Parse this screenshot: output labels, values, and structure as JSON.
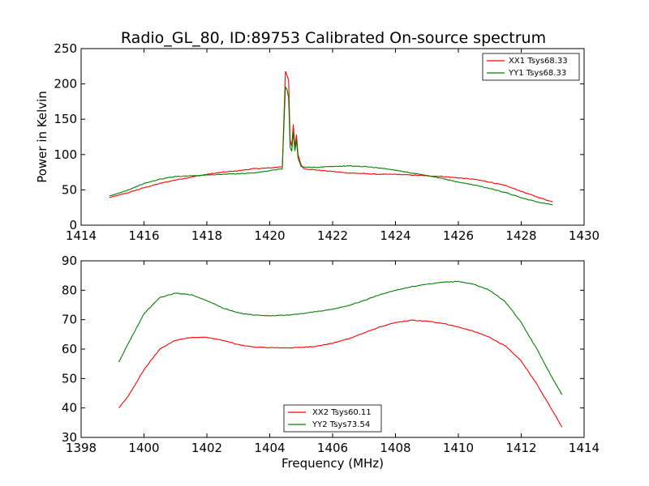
{
  "figure": {
    "title": "Radio_GL_80, ID:89753 Calibrated On-source spectrum",
    "colors": {
      "red": "#ff0000",
      "green": "#008000"
    }
  },
  "chart_data": [
    {
      "type": "line",
      "title": "Radio_GL_80, ID:89753 Calibrated On-source spectrum",
      "xlabel": "",
      "ylabel": "Power in Kelvin",
      "xlim": [
        1414,
        1430
      ],
      "ylim": [
        0,
        250
      ],
      "xticks": [
        "1414",
        "1416",
        "1418",
        "1420",
        "1422",
        "1424",
        "1426",
        "1428",
        "1430"
      ],
      "yticks": [
        "0",
        "50",
        "100",
        "150",
        "200",
        "250"
      ],
      "grid": false,
      "legend": "top-right",
      "series": [
        {
          "name": "XX1 Tsys68.33",
          "color": "#ff0000",
          "points": [
            [
              1414.9,
              39
            ],
            [
              1415.5,
              46
            ],
            [
              1416.0,
              53
            ],
            [
              1416.5,
              59
            ],
            [
              1417.0,
              64
            ],
            [
              1417.5,
              68
            ],
            [
              1418.0,
              72
            ],
            [
              1418.5,
              75
            ],
            [
              1419.0,
              77
            ],
            [
              1419.5,
              80
            ],
            [
              1420.0,
              81
            ],
            [
              1420.4,
              83
            ],
            [
              1420.45,
              150
            ],
            [
              1420.5,
              218
            ],
            [
              1420.55,
              212
            ],
            [
              1420.6,
              205
            ],
            [
              1420.65,
              120
            ],
            [
              1420.7,
              112
            ],
            [
              1420.75,
              142
            ],
            [
              1420.8,
              110
            ],
            [
              1420.85,
              128
            ],
            [
              1420.9,
              100
            ],
            [
              1421.0,
              85
            ],
            [
              1421.1,
              80
            ],
            [
              1421.5,
              78
            ],
            [
              1422.0,
              76
            ],
            [
              1422.5,
              74
            ],
            [
              1423.0,
              73
            ],
            [
              1423.5,
              72
            ],
            [
              1424.0,
              72
            ],
            [
              1424.5,
              71
            ],
            [
              1425.0,
              70
            ],
            [
              1425.5,
              69
            ],
            [
              1426.0,
              67
            ],
            [
              1426.5,
              65
            ],
            [
              1427.0,
              61
            ],
            [
              1427.5,
              56
            ],
            [
              1428.0,
              48
            ],
            [
              1428.5,
              40
            ],
            [
              1429.0,
              33
            ]
          ]
        },
        {
          "name": "YY1 Tsys68.33",
          "color": "#008000",
          "points": [
            [
              1414.9,
              41
            ],
            [
              1415.5,
              50
            ],
            [
              1416.0,
              59
            ],
            [
              1416.5,
              65
            ],
            [
              1417.0,
              69
            ],
            [
              1417.5,
              70
            ],
            [
              1418.0,
              71
            ],
            [
              1418.5,
              72
            ],
            [
              1419.0,
              73
            ],
            [
              1419.5,
              74
            ],
            [
              1420.0,
              77
            ],
            [
              1420.4,
              80
            ],
            [
              1420.45,
              140
            ],
            [
              1420.5,
              196
            ],
            [
              1420.55,
              192
            ],
            [
              1420.6,
              180
            ],
            [
              1420.65,
              110
            ],
            [
              1420.7,
              105
            ],
            [
              1420.75,
              132
            ],
            [
              1420.8,
              105
            ],
            [
              1420.85,
              120
            ],
            [
              1420.9,
              95
            ],
            [
              1421.0,
              83
            ],
            [
              1421.1,
              82
            ],
            [
              1421.5,
              82
            ],
            [
              1422.0,
              83
            ],
            [
              1422.5,
              84
            ],
            [
              1423.0,
              83
            ],
            [
              1423.5,
              81
            ],
            [
              1424.0,
              78
            ],
            [
              1424.5,
              74
            ],
            [
              1425.0,
              70
            ],
            [
              1425.5,
              66
            ],
            [
              1426.0,
              61
            ],
            [
              1426.5,
              57
            ],
            [
              1427.0,
              52
            ],
            [
              1427.5,
              46
            ],
            [
              1428.0,
              39
            ],
            [
              1428.5,
              33
            ],
            [
              1429.0,
              29
            ]
          ]
        }
      ]
    },
    {
      "type": "line",
      "title": "",
      "xlabel": "Frequency (MHz)",
      "ylabel": "",
      "xlim": [
        1398,
        1414
      ],
      "ylim": [
        30,
        90
      ],
      "xticks": [
        "1398",
        "1400",
        "1402",
        "1404",
        "1406",
        "1408",
        "1410",
        "1412",
        "1414"
      ],
      "yticks": [
        "30",
        "40",
        "50",
        "60",
        "70",
        "80",
        "90"
      ],
      "grid": false,
      "legend": "bottom-center",
      "series": [
        {
          "name": "XX2 Tsys60.11",
          "color": "#ff0000",
          "points": [
            [
              1399.2,
              40
            ],
            [
              1399.5,
              44
            ],
            [
              1400.0,
              53
            ],
            [
              1400.5,
              60
            ],
            [
              1401.0,
              63
            ],
            [
              1401.5,
              64
            ],
            [
              1402.0,
              64
            ],
            [
              1402.5,
              63
            ],
            [
              1403.0,
              61.5
            ],
            [
              1403.5,
              60.7
            ],
            [
              1404.0,
              60.5
            ],
            [
              1404.5,
              60.4
            ],
            [
              1405.0,
              60.6
            ],
            [
              1405.5,
              61
            ],
            [
              1406.0,
              62
            ],
            [
              1406.5,
              63.5
            ],
            [
              1407.0,
              65.5
            ],
            [
              1407.5,
              67.5
            ],
            [
              1408.0,
              69
            ],
            [
              1408.5,
              69.8
            ],
            [
              1409.0,
              69.5
            ],
            [
              1409.5,
              68.8
            ],
            [
              1410.0,
              67.5
            ],
            [
              1410.5,
              66
            ],
            [
              1411.0,
              64
            ],
            [
              1411.5,
              61
            ],
            [
              1412.0,
              56
            ],
            [
              1412.5,
              48
            ],
            [
              1413.0,
              39
            ],
            [
              1413.3,
              33.5
            ]
          ]
        },
        {
          "name": "YY2 Tsys73.54",
          "color": "#008000",
          "points": [
            [
              1399.2,
              55.5
            ],
            [
              1399.5,
              62
            ],
            [
              1400.0,
              72
            ],
            [
              1400.5,
              77.5
            ],
            [
              1401.0,
              79
            ],
            [
              1401.5,
              78.5
            ],
            [
              1402.0,
              76.5
            ],
            [
              1402.5,
              74
            ],
            [
              1403.0,
              72.3
            ],
            [
              1403.5,
              71.6
            ],
            [
              1404.0,
              71.3
            ],
            [
              1404.5,
              71.5
            ],
            [
              1405.0,
              72
            ],
            [
              1405.5,
              72.8
            ],
            [
              1406.0,
              73.5
            ],
            [
              1406.5,
              74.8
            ],
            [
              1407.0,
              76.5
            ],
            [
              1407.5,
              78.5
            ],
            [
              1408.0,
              80
            ],
            [
              1408.5,
              81.2
            ],
            [
              1409.0,
              82
            ],
            [
              1409.5,
              82.7
            ],
            [
              1410.0,
              83
            ],
            [
              1410.5,
              82
            ],
            [
              1411.0,
              80
            ],
            [
              1411.5,
              76
            ],
            [
              1412.0,
              69
            ],
            [
              1412.5,
              60
            ],
            [
              1413.0,
              50
            ],
            [
              1413.3,
              44.5
            ]
          ]
        }
      ]
    }
  ]
}
